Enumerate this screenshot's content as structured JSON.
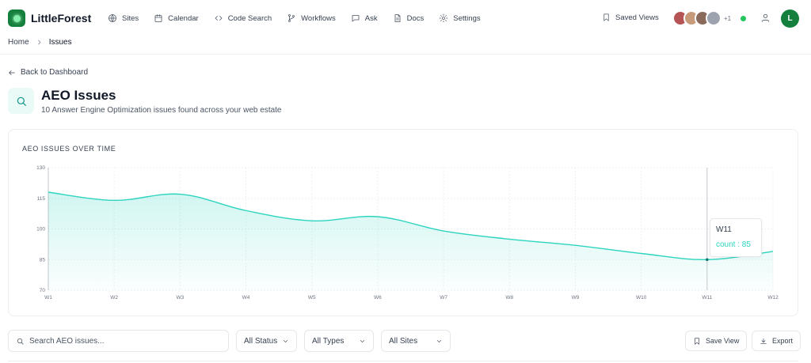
{
  "app": {
    "name": "LittleForest",
    "user_initial": "L",
    "accent": "#15803d"
  },
  "nav": {
    "items": [
      {
        "label": "Sites",
        "icon": "globe-icon"
      },
      {
        "label": "Calendar",
        "icon": "calendar-icon"
      },
      {
        "label": "Code Search",
        "icon": "code-icon"
      },
      {
        "label": "Workflows",
        "icon": "branch-icon"
      },
      {
        "label": "Ask",
        "icon": "chat-icon"
      },
      {
        "label": "Docs",
        "icon": "document-icon"
      },
      {
        "label": "Settings",
        "icon": "gear-icon"
      }
    ],
    "saved_views": "Saved Views",
    "collaborators_more": "+1"
  },
  "breadcrumb": {
    "home": "Home",
    "current": "Issues"
  },
  "back_link": "Back to Dashboard",
  "page": {
    "title": "AEO Issues",
    "subtitle": "10 Answer Engine Optimization issues found across your web estate"
  },
  "chart_data": {
    "type": "area",
    "title": "AEO ISSUES OVER TIME",
    "categories": [
      "W1",
      "W2",
      "W3",
      "W4",
      "W5",
      "W6",
      "W7",
      "W8",
      "W9",
      "W10",
      "W11",
      "W12"
    ],
    "series": [
      {
        "name": "count",
        "values": [
          118,
          114,
          117,
          109,
          104,
          106,
          99,
          95,
          92,
          88,
          85,
          89
        ]
      }
    ],
    "ylim": [
      70,
      130
    ],
    "yticks": [
      70,
      85,
      100,
      115,
      130
    ],
    "grid": true,
    "color": "#2dd4bf",
    "tooltip": {
      "label": "W11",
      "value_text": "count : 85",
      "index": 10
    }
  },
  "filters": {
    "search_placeholder": "Search AEO issues...",
    "status": "All Status",
    "types": "All Types",
    "sites": "All Sites",
    "save_view": "Save View",
    "export": "Export"
  }
}
